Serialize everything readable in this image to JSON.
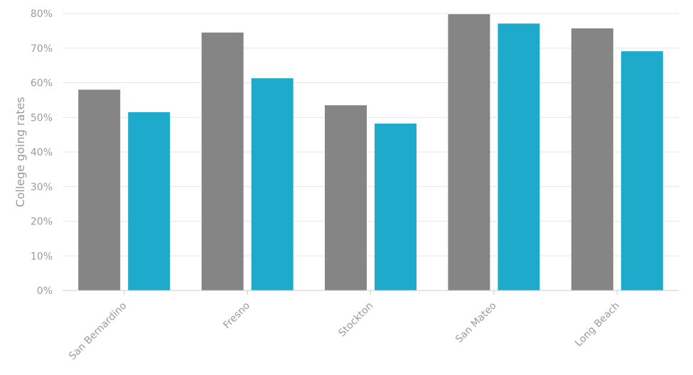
{
  "chart_data": {
    "type": "bar",
    "y_label": "College going rates",
    "categories": [
      "San Bernardino",
      "Fresno",
      "Stockton",
      "San Mateo",
      "Long Beach"
    ],
    "series": [
      {
        "color": "#858585",
        "values": [
          58,
          74.5,
          53.5,
          79.8,
          75.7
        ]
      },
      {
        "color": "#1eaacb",
        "values": [
          51.5,
          61.3,
          48.2,
          77.1,
          69.1
        ]
      }
    ],
    "ylim": [
      0,
      80
    ],
    "yticks": [
      {
        "value": 0,
        "label": "0%"
      },
      {
        "value": 10,
        "label": "10%"
      },
      {
        "value": 20,
        "label": "20%"
      },
      {
        "value": 30,
        "label": "30%"
      },
      {
        "value": 40,
        "label": "40%"
      },
      {
        "value": 50,
        "label": "50%"
      },
      {
        "value": 60,
        "label": "60%"
      },
      {
        "value": 70,
        "label": "70%"
      },
      {
        "value": 80,
        "label": "80%"
      }
    ],
    "grid": true
  }
}
